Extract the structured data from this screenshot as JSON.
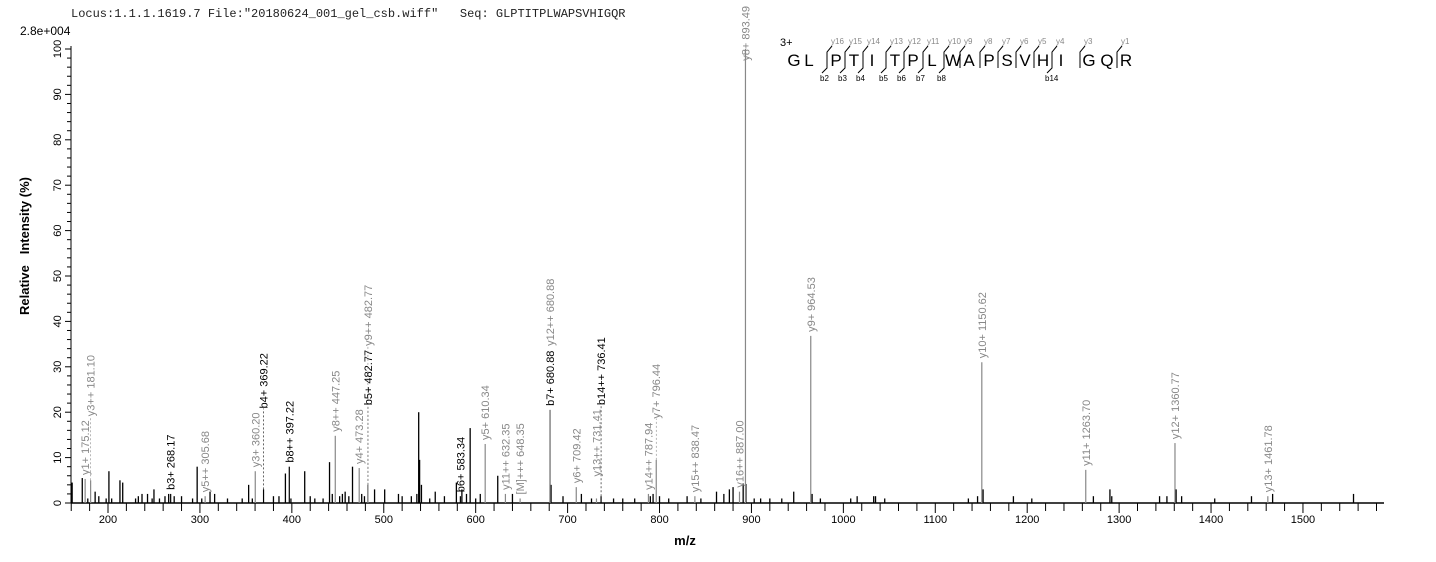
{
  "header": {
    "locus": "Locus:1.1.1.1619.7",
    "file": "File:\"20180624_001_gel_csb.wiff\"",
    "seq": "Seq: GLPTITPLWAPSVHIGQR"
  },
  "chart_data": {
    "type": "bar",
    "scale_label": "2.8e+004",
    "xlabel": "m/z",
    "ylabel": "Relative   Intensity (%)",
    "xlim": [
      159,
      1588
    ],
    "ylim": [
      0,
      100
    ],
    "x_ticks": [
      200,
      300,
      400,
      500,
      600,
      700,
      800,
      900,
      1000,
      1100,
      1200,
      1300,
      1400,
      1500
    ],
    "y_ticks": [
      0,
      10,
      20,
      30,
      40,
      50,
      60,
      70,
      80,
      90,
      100
    ],
    "grid": false,
    "colors": {
      "b_ion": "#000000",
      "y_ion": "#888888",
      "unassigned": "#000000"
    },
    "labeled_peaks": [
      {
        "label": "y1+ 175.12",
        "mz": 175.12,
        "intensity": 5.3,
        "ion": "y"
      },
      {
        "label": "y3++ 181.10",
        "mz": 181.1,
        "intensity": 5.0,
        "ion": "y"
      },
      {
        "label": "b3+ 268.17",
        "mz": 268.17,
        "intensity": 2.0,
        "ion": "b"
      },
      {
        "label": "y5++ 305.68",
        "mz": 305.68,
        "intensity": 1.5,
        "ion": "y"
      },
      {
        "label": "y3+ 360.20",
        "mz": 360.2,
        "intensity": 7.0,
        "ion": "y"
      },
      {
        "label": "b4+ 369.22",
        "mz": 369.22,
        "intensity": 3.0,
        "ion": "b"
      },
      {
        "label": "b8++ 397.22",
        "mz": 397.22,
        "intensity": 8.0,
        "ion": "b"
      },
      {
        "label": "y8++ 447.25",
        "mz": 447.25,
        "intensity": 14.8,
        "ion": "y"
      },
      {
        "label": "y4+ 473.28",
        "mz": 473.28,
        "intensity": 7.7,
        "ion": "y"
      },
      {
        "label": "b5+ 482.77",
        "mz": 482.77,
        "intensity": 4.0,
        "ion": "b"
      },
      {
        "label": "y9++ 482.77",
        "mz": 482.77,
        "intensity": 4.0,
        "ion": "y",
        "offset": 14
      },
      {
        "label": "b6+ 583.34",
        "mz": 583.34,
        "intensity": 1.5,
        "ion": "b"
      },
      {
        "label": "y5+ 610.34",
        "mz": 610.34,
        "intensity": 13.0,
        "ion": "y"
      },
      {
        "label": "y11++ 632.35",
        "mz": 632.35,
        "intensity": 2.0,
        "ion": "y"
      },
      {
        "label": "[M]+++ 648.35",
        "mz": 648.35,
        "intensity": 1.0,
        "ion": "y"
      },
      {
        "label": "b7+ 680.88",
        "mz": 680.88,
        "intensity": 20.5,
        "ion": "b"
      },
      {
        "label": "y12++ 680.88",
        "mz": 680.88,
        "intensity": 20.5,
        "ion": "y",
        "offset": 60
      },
      {
        "label": "y6+ 709.42",
        "mz": 709.42,
        "intensity": 3.5,
        "ion": "y"
      },
      {
        "label": "y13++ 731.41",
        "mz": 731.41,
        "intensity": 1.0,
        "ion": "y",
        "offset": 18
      },
      {
        "label": "b14++ 736.41",
        "mz": 736.41,
        "intensity": 1.5,
        "ion": "b"
      },
      {
        "label": "y14++ 787.94",
        "mz": 787.94,
        "intensity": 2.0,
        "ion": "y"
      },
      {
        "label": "y7+ 796.44",
        "mz": 796.44,
        "intensity": 9.5,
        "ion": "y"
      },
      {
        "label": "y15++ 838.47",
        "mz": 838.47,
        "intensity": 1.5,
        "ion": "y"
      },
      {
        "label": "y16++ 887.00",
        "mz": 887.0,
        "intensity": 2.5,
        "ion": "y"
      },
      {
        "label": "y8+ 893.49",
        "mz": 893.49,
        "intensity": 100,
        "ion": "y"
      },
      {
        "label": "y9+ 964.53",
        "mz": 964.53,
        "intensity": 36.8,
        "ion": "y"
      },
      {
        "label": "y10+ 1150.62",
        "mz": 1150.62,
        "intensity": 31.0,
        "ion": "y"
      },
      {
        "label": "y11+ 1263.70",
        "mz": 1263.7,
        "intensity": 7.3,
        "ion": "y"
      },
      {
        "label": "y12+ 1360.77",
        "mz": 1360.77,
        "intensity": 13.2,
        "ion": "y"
      },
      {
        "label": "y13+ 1461.78",
        "mz": 1461.78,
        "intensity": 1.5,
        "ion": "y"
      }
    ],
    "unlabeled_peaks": [
      [
        161,
        4.5
      ],
      [
        172,
        5.5
      ],
      [
        178,
        1
      ],
      [
        186,
        2.5
      ],
      [
        190,
        1.5
      ],
      [
        198,
        1
      ],
      [
        201,
        7
      ],
      [
        204,
        1
      ],
      [
        213,
        5
      ],
      [
        216,
        4.5
      ],
      [
        230,
        1
      ],
      [
        233,
        1.5
      ],
      [
        237,
        2
      ],
      [
        243,
        2
      ],
      [
        248,
        1
      ],
      [
        250,
        3
      ],
      [
        256,
        1
      ],
      [
        262,
        1.5
      ],
      [
        266,
        2
      ],
      [
        272,
        1.5
      ],
      [
        280,
        1.5
      ],
      [
        292,
        1
      ],
      [
        297,
        8
      ],
      [
        302,
        1
      ],
      [
        311,
        2.5
      ],
      [
        316,
        2
      ],
      [
        330,
        1
      ],
      [
        346,
        1
      ],
      [
        353,
        4
      ],
      [
        357,
        1
      ],
      [
        380,
        1.5
      ],
      [
        386,
        1.5
      ],
      [
        393,
        6.5
      ],
      [
        399,
        1
      ],
      [
        414,
        7
      ],
      [
        420,
        1.5
      ],
      [
        425,
        1
      ],
      [
        434,
        1
      ],
      [
        441,
        9
      ],
      [
        444,
        2
      ],
      [
        452,
        1.5
      ],
      [
        455,
        2
      ],
      [
        458,
        2.5
      ],
      [
        462,
        1.5
      ],
      [
        466,
        8
      ],
      [
        476,
        2
      ],
      [
        479,
        1.5
      ],
      [
        490,
        3
      ],
      [
        501,
        3
      ],
      [
        516,
        2
      ],
      [
        520,
        1.5
      ],
      [
        530,
        1.5
      ],
      [
        536,
        2
      ],
      [
        538,
        20
      ],
      [
        539,
        9.5
      ],
      [
        541,
        4
      ],
      [
        550,
        1
      ],
      [
        556,
        2.5
      ],
      [
        566,
        1.5
      ],
      [
        579,
        4.5
      ],
      [
        585,
        3
      ],
      [
        590,
        2
      ],
      [
        594,
        16.5
      ],
      [
        600,
        1
      ],
      [
        605,
        2
      ],
      [
        624,
        6
      ],
      [
        640,
        2
      ],
      [
        682,
        4
      ],
      [
        695,
        1.5
      ],
      [
        715,
        2
      ],
      [
        726,
        1
      ],
      [
        750,
        1
      ],
      [
        760,
        1
      ],
      [
        773,
        1
      ],
      [
        790,
        1.5
      ],
      [
        793,
        2
      ],
      [
        800,
        1.5
      ],
      [
        810,
        1
      ],
      [
        830,
        1.5
      ],
      [
        845,
        1
      ],
      [
        862,
        2.5
      ],
      [
        870,
        2
      ],
      [
        876,
        3
      ],
      [
        880,
        3.5
      ],
      [
        891,
        4.3
      ],
      [
        894,
        4.2
      ],
      [
        903,
        1
      ],
      [
        910,
        1
      ],
      [
        920,
        1
      ],
      [
        933,
        1
      ],
      [
        946,
        2.5
      ],
      [
        966,
        2
      ],
      [
        975,
        1
      ],
      [
        1008,
        1
      ],
      [
        1015,
        1.5
      ],
      [
        1033,
        1.5
      ],
      [
        1035,
        1.5
      ],
      [
        1045,
        1
      ],
      [
        1136,
        1
      ],
      [
        1146,
        1.5
      ],
      [
        1152,
        3
      ],
      [
        1185,
        1.5
      ],
      [
        1205,
        1
      ],
      [
        1272,
        1.5
      ],
      [
        1290,
        3
      ],
      [
        1292,
        1.5
      ],
      [
        1344,
        1.5
      ],
      [
        1352,
        1.5
      ],
      [
        1362,
        3
      ],
      [
        1368,
        1.5
      ],
      [
        1404,
        1
      ],
      [
        1444,
        1.5
      ],
      [
        1467,
        2
      ],
      [
        1555,
        2
      ]
    ]
  },
  "sequence": {
    "charge": "3+",
    "residues": [
      "G",
      "L",
      "P",
      "T",
      "I",
      "T",
      "P",
      "L",
      "W",
      "A",
      "P",
      "S",
      "V",
      "H",
      "I",
      "G",
      "Q",
      "R"
    ],
    "y_fragments": [
      {
        "before": 2,
        "label": "y16"
      },
      {
        "before": 3,
        "label": "y15"
      },
      {
        "before": 4,
        "label": "y14"
      },
      {
        "before": 5,
        "label": "y13"
      },
      {
        "before": 6,
        "label": "y12"
      },
      {
        "before": 7,
        "label": "y11"
      },
      {
        "before": 8,
        "label": "y10"
      },
      {
        "before": 9,
        "label": "y9"
      },
      {
        "before": 10,
        "label": "y8"
      },
      {
        "before": 11,
        "label": "y7"
      },
      {
        "before": 12,
        "label": "y6"
      },
      {
        "before": 13,
        "label": "y5"
      },
      {
        "before": 14,
        "label": "y4"
      },
      {
        "before": 15,
        "label": "y3"
      },
      {
        "before": 17,
        "label": "y1"
      }
    ],
    "b_fragments": [
      {
        "before": 2,
        "label": "b2"
      },
      {
        "before": 3,
        "label": "b3"
      },
      {
        "before": 4,
        "label": "b4"
      },
      {
        "before": 5,
        "label": "b5"
      },
      {
        "before": 6,
        "label": "b6"
      },
      {
        "before": 7,
        "label": "b7"
      },
      {
        "before": 8,
        "label": "b8"
      },
      {
        "before": 14,
        "label": "b14"
      }
    ]
  }
}
